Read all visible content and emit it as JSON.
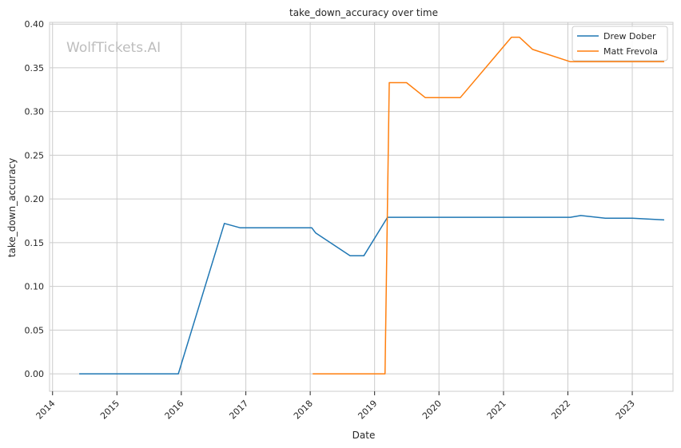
{
  "chart_data": {
    "type": "line",
    "title": "take_down_accuracy over time",
    "xlabel": "Date",
    "ylabel": "take_down_accuracy",
    "watermark": "WolfTickets.AI",
    "xlim": [
      "2013-12-15",
      "2023-08-20"
    ],
    "ylim": [
      -0.02,
      0.402
    ],
    "x_ticks": [
      "2014",
      "2015",
      "2016",
      "2017",
      "2018",
      "2019",
      "2020",
      "2021",
      "2022",
      "2023"
    ],
    "y_ticks": [
      "0.00",
      "0.05",
      "0.10",
      "0.15",
      "0.20",
      "0.25",
      "0.30",
      "0.35",
      "0.40"
    ],
    "grid": true,
    "legend_position": "top-right",
    "series": [
      {
        "name": "Drew Dober",
        "color": "#1f77b4",
        "points": [
          [
            "2014-06-01",
            0.0
          ],
          [
            "2015-12-15",
            0.0
          ],
          [
            "2016-09-01",
            0.172
          ],
          [
            "2016-12-01",
            0.167
          ],
          [
            "2018-01-10",
            0.167
          ],
          [
            "2018-02-01",
            0.161
          ],
          [
            "2018-08-15",
            0.135
          ],
          [
            "2018-11-01",
            0.135
          ],
          [
            "2019-03-15",
            0.179
          ],
          [
            "2022-01-15",
            0.179
          ],
          [
            "2022-03-15",
            0.181
          ],
          [
            "2022-08-01",
            0.178
          ],
          [
            "2023-01-01",
            0.178
          ],
          [
            "2023-07-01",
            0.176
          ]
        ]
      },
      {
        "name": "Matt Frevola",
        "color": "#ff7f0e",
        "points": [
          [
            "2018-01-15",
            0.0
          ],
          [
            "2019-03-01",
            0.0
          ],
          [
            "2019-03-25",
            0.333
          ],
          [
            "2019-07-01",
            0.333
          ],
          [
            "2019-10-15",
            0.316
          ],
          [
            "2020-05-01",
            0.316
          ],
          [
            "2021-02-15",
            0.385
          ],
          [
            "2021-04-01",
            0.385
          ],
          [
            "2021-06-15",
            0.371
          ],
          [
            "2022-01-15",
            0.357
          ],
          [
            "2023-07-01",
            0.357
          ]
        ]
      }
    ]
  }
}
